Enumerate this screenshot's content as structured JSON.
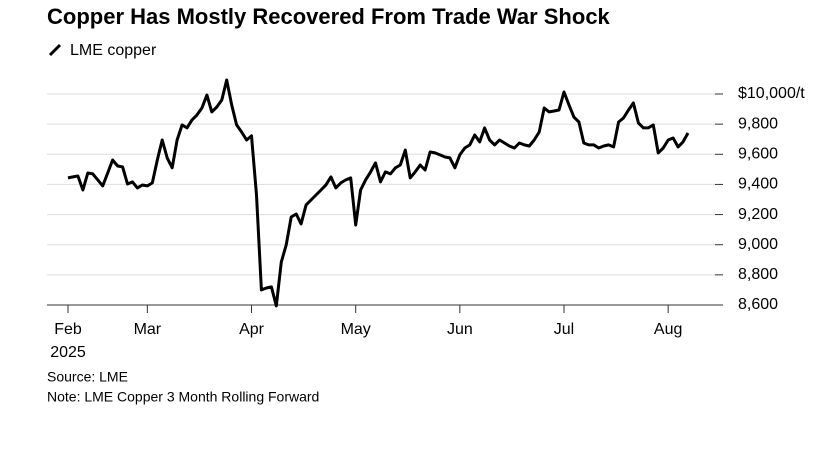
{
  "chart_data": {
    "type": "line",
    "title": "Copper Has Mostly Recovered From Trade War Shock",
    "source": "Source: LME",
    "note": "Note: LME Copper 3 Month Rolling Forward",
    "year_label": "2025",
    "categories": [
      "Feb",
      null,
      null,
      null,
      null,
      null,
      null,
      null,
      null,
      null,
      null,
      null,
      null,
      null,
      null,
      null,
      "Mar",
      null,
      null,
      null,
      null,
      null,
      null,
      null,
      null,
      null,
      null,
      null,
      null,
      null,
      null,
      null,
      null,
      null,
      null,
      null,
      null,
      "Apr",
      null,
      null,
      null,
      null,
      null,
      null,
      null,
      null,
      null,
      null,
      null,
      null,
      null,
      null,
      null,
      null,
      null,
      null,
      null,
      null,
      "May",
      null,
      null,
      null,
      null,
      null,
      null,
      null,
      null,
      null,
      null,
      null,
      null,
      null,
      null,
      null,
      null,
      null,
      null,
      null,
      null,
      "Jun",
      null,
      null,
      null,
      null,
      null,
      null,
      null,
      null,
      null,
      null,
      null,
      null,
      null,
      null,
      null,
      null,
      null,
      null,
      null,
      null,
      "Jul",
      null,
      null,
      null,
      null,
      null,
      null,
      null,
      null,
      null,
      null,
      null,
      null,
      null,
      null,
      null,
      null,
      null,
      null,
      null,
      null,
      "Aug",
      null,
      null,
      null,
      null
    ],
    "series": [
      {
        "name": "LME copper",
        "color": "#000000",
        "values": [
          9443,
          9450,
          9456,
          9363,
          9476,
          9470,
          9430,
          9390,
          9476,
          9562,
          9522,
          9516,
          9403,
          9417,
          9377,
          9396,
          9390,
          9410,
          9562,
          9695,
          9576,
          9510,
          9695,
          9795,
          9775,
          9828,
          9861,
          9907,
          9993,
          9881,
          9914,
          9960,
          10093,
          9927,
          9795,
          9748,
          9695,
          9722,
          9330,
          8700,
          8713,
          8720,
          8594,
          8885,
          8998,
          9184,
          9204,
          9138,
          9264,
          9297,
          9330,
          9363,
          9397,
          9450,
          9377,
          9410,
          9430,
          9443,
          9131,
          9363,
          9430,
          9483,
          9543,
          9417,
          9483,
          9470,
          9510,
          9529,
          9628,
          9443,
          9483,
          9529,
          9496,
          9615,
          9609,
          9596,
          9582,
          9576,
          9510,
          9596,
          9642,
          9662,
          9728,
          9682,
          9775,
          9695,
          9662,
          9695,
          9675,
          9655,
          9642,
          9675,
          9662,
          9655,
          9695,
          9748,
          9907,
          9881,
          9887,
          9894,
          10013,
          9927,
          9847,
          9814,
          9675,
          9662,
          9662,
          9642,
          9655,
          9662,
          9649,
          9814,
          9841,
          9894,
          9940,
          9808,
          9775,
          9775,
          9795,
          9609,
          9642,
          9695,
          9708,
          9649,
          9682,
          9741
        ]
      }
    ],
    "ylim": [
      8580,
      10120
    ],
    "yticks": [
      {
        "value": 8600,
        "label": "8,600"
      },
      {
        "value": 8800,
        "label": "8,800"
      },
      {
        "value": 9000,
        "label": "9,000"
      },
      {
        "value": 9200,
        "label": "9,200"
      },
      {
        "value": 9400,
        "label": "9,400"
      },
      {
        "value": 9600,
        "label": "9,600"
      },
      {
        "value": 9800,
        "label": "9,800"
      },
      {
        "value": 10000,
        "label": "$10,000/t"
      }
    ],
    "grid": true
  }
}
